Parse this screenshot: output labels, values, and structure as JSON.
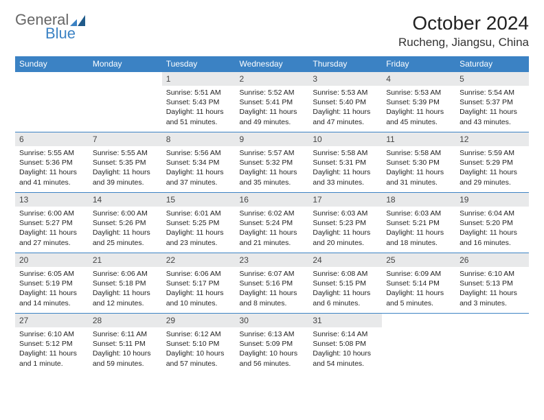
{
  "logo": {
    "text1": "General",
    "text2": "Blue"
  },
  "title": "October 2024",
  "location": "Rucheng, Jiangsu, China",
  "colors": {
    "header_bg": "#3b82c4",
    "header_text": "#ffffff",
    "daynum_bg": "#e8e9ea",
    "border": "#3b82c4",
    "logo_gray": "#666666",
    "logo_blue": "#3b82c4"
  },
  "weekdays": [
    "Sunday",
    "Monday",
    "Tuesday",
    "Wednesday",
    "Thursday",
    "Friday",
    "Saturday"
  ],
  "weeks": [
    [
      null,
      null,
      {
        "n": "1",
        "sr": "5:51 AM",
        "ss": "5:43 PM",
        "dl": "11 hours and 51 minutes."
      },
      {
        "n": "2",
        "sr": "5:52 AM",
        "ss": "5:41 PM",
        "dl": "11 hours and 49 minutes."
      },
      {
        "n": "3",
        "sr": "5:53 AM",
        "ss": "5:40 PM",
        "dl": "11 hours and 47 minutes."
      },
      {
        "n": "4",
        "sr": "5:53 AM",
        "ss": "5:39 PM",
        "dl": "11 hours and 45 minutes."
      },
      {
        "n": "5",
        "sr": "5:54 AM",
        "ss": "5:37 PM",
        "dl": "11 hours and 43 minutes."
      }
    ],
    [
      {
        "n": "6",
        "sr": "5:55 AM",
        "ss": "5:36 PM",
        "dl": "11 hours and 41 minutes."
      },
      {
        "n": "7",
        "sr": "5:55 AM",
        "ss": "5:35 PM",
        "dl": "11 hours and 39 minutes."
      },
      {
        "n": "8",
        "sr": "5:56 AM",
        "ss": "5:34 PM",
        "dl": "11 hours and 37 minutes."
      },
      {
        "n": "9",
        "sr": "5:57 AM",
        "ss": "5:32 PM",
        "dl": "11 hours and 35 minutes."
      },
      {
        "n": "10",
        "sr": "5:58 AM",
        "ss": "5:31 PM",
        "dl": "11 hours and 33 minutes."
      },
      {
        "n": "11",
        "sr": "5:58 AM",
        "ss": "5:30 PM",
        "dl": "11 hours and 31 minutes."
      },
      {
        "n": "12",
        "sr": "5:59 AM",
        "ss": "5:29 PM",
        "dl": "11 hours and 29 minutes."
      }
    ],
    [
      {
        "n": "13",
        "sr": "6:00 AM",
        "ss": "5:27 PM",
        "dl": "11 hours and 27 minutes."
      },
      {
        "n": "14",
        "sr": "6:00 AM",
        "ss": "5:26 PM",
        "dl": "11 hours and 25 minutes."
      },
      {
        "n": "15",
        "sr": "6:01 AM",
        "ss": "5:25 PM",
        "dl": "11 hours and 23 minutes."
      },
      {
        "n": "16",
        "sr": "6:02 AM",
        "ss": "5:24 PM",
        "dl": "11 hours and 21 minutes."
      },
      {
        "n": "17",
        "sr": "6:03 AM",
        "ss": "5:23 PM",
        "dl": "11 hours and 20 minutes."
      },
      {
        "n": "18",
        "sr": "6:03 AM",
        "ss": "5:21 PM",
        "dl": "11 hours and 18 minutes."
      },
      {
        "n": "19",
        "sr": "6:04 AM",
        "ss": "5:20 PM",
        "dl": "11 hours and 16 minutes."
      }
    ],
    [
      {
        "n": "20",
        "sr": "6:05 AM",
        "ss": "5:19 PM",
        "dl": "11 hours and 14 minutes."
      },
      {
        "n": "21",
        "sr": "6:06 AM",
        "ss": "5:18 PM",
        "dl": "11 hours and 12 minutes."
      },
      {
        "n": "22",
        "sr": "6:06 AM",
        "ss": "5:17 PM",
        "dl": "11 hours and 10 minutes."
      },
      {
        "n": "23",
        "sr": "6:07 AM",
        "ss": "5:16 PM",
        "dl": "11 hours and 8 minutes."
      },
      {
        "n": "24",
        "sr": "6:08 AM",
        "ss": "5:15 PM",
        "dl": "11 hours and 6 minutes."
      },
      {
        "n": "25",
        "sr": "6:09 AM",
        "ss": "5:14 PM",
        "dl": "11 hours and 5 minutes."
      },
      {
        "n": "26",
        "sr": "6:10 AM",
        "ss": "5:13 PM",
        "dl": "11 hours and 3 minutes."
      }
    ],
    [
      {
        "n": "27",
        "sr": "6:10 AM",
        "ss": "5:12 PM",
        "dl": "11 hours and 1 minute."
      },
      {
        "n": "28",
        "sr": "6:11 AM",
        "ss": "5:11 PM",
        "dl": "10 hours and 59 minutes."
      },
      {
        "n": "29",
        "sr": "6:12 AM",
        "ss": "5:10 PM",
        "dl": "10 hours and 57 minutes."
      },
      {
        "n": "30",
        "sr": "6:13 AM",
        "ss": "5:09 PM",
        "dl": "10 hours and 56 minutes."
      },
      {
        "n": "31",
        "sr": "6:14 AM",
        "ss": "5:08 PM",
        "dl": "10 hours and 54 minutes."
      },
      null,
      null
    ]
  ],
  "labels": {
    "sunrise": "Sunrise:",
    "sunset": "Sunset:",
    "daylight": "Daylight:"
  }
}
